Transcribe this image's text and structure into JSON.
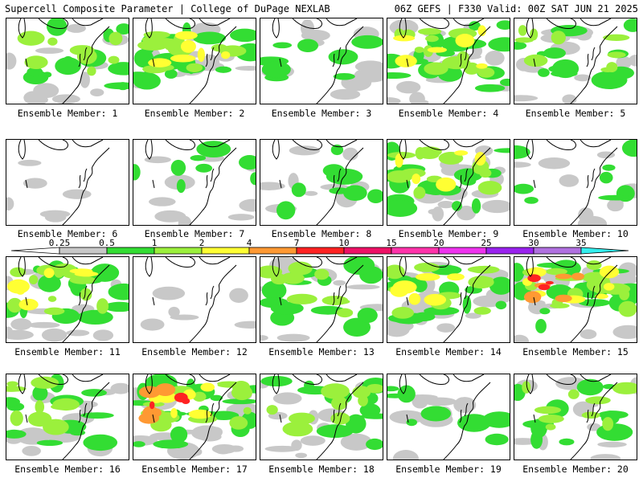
{
  "header": {
    "left": "Supercell Composite Parameter | College of DuPage NEXLAB",
    "right": "06Z GEFS | F330 Valid: 00Z SAT JUN 21 2025"
  },
  "colorbar": {
    "ticks": [
      "0.25",
      "0.5",
      "1",
      "2",
      "4",
      "7",
      "10",
      "15",
      "20",
      "25",
      "30",
      "35"
    ],
    "colors": [
      "#c8c8c8",
      "#33dd33",
      "#9bf03c",
      "#ffff33",
      "#ff9933",
      "#ff2222",
      "#ee1166",
      "#ff33aa",
      "#ee33ee",
      "#9922ee",
      "#b070e0",
      "#33eeee"
    ]
  },
  "members": [
    {
      "label": "Ensemble Member: 1",
      "intensity": 2
    },
    {
      "label": "Ensemble Member: 2",
      "intensity": 3
    },
    {
      "label": "Ensemble Member: 3",
      "intensity": 1
    },
    {
      "label": "Ensemble Member: 4",
      "intensity": 3
    },
    {
      "label": "Ensemble Member: 5",
      "intensity": 2
    },
    {
      "label": "Ensemble Member: 6",
      "intensity": 0
    },
    {
      "label": "Ensemble Member: 7",
      "intensity": 1
    },
    {
      "label": "Ensemble Member: 8",
      "intensity": 1
    },
    {
      "label": "Ensemble Member: 9",
      "intensity": 3
    },
    {
      "label": "Ensemble Member: 10",
      "intensity": 1
    },
    {
      "label": "Ensemble Member: 11",
      "intensity": 3
    },
    {
      "label": "Ensemble Member: 12",
      "intensity": 0
    },
    {
      "label": "Ensemble Member: 13",
      "intensity": 2
    },
    {
      "label": "Ensemble Member: 14",
      "intensity": 3
    },
    {
      "label": "Ensemble Member: 15",
      "intensity": 4
    },
    {
      "label": "Ensemble Member: 16",
      "intensity": 2
    },
    {
      "label": "Ensemble Member: 17",
      "intensity": 4
    },
    {
      "label": "Ensemble Member: 18",
      "intensity": 2
    },
    {
      "label": "Ensemble Member: 19",
      "intensity": 1
    },
    {
      "label": "Ensemble Member: 20",
      "intensity": 2
    }
  ]
}
